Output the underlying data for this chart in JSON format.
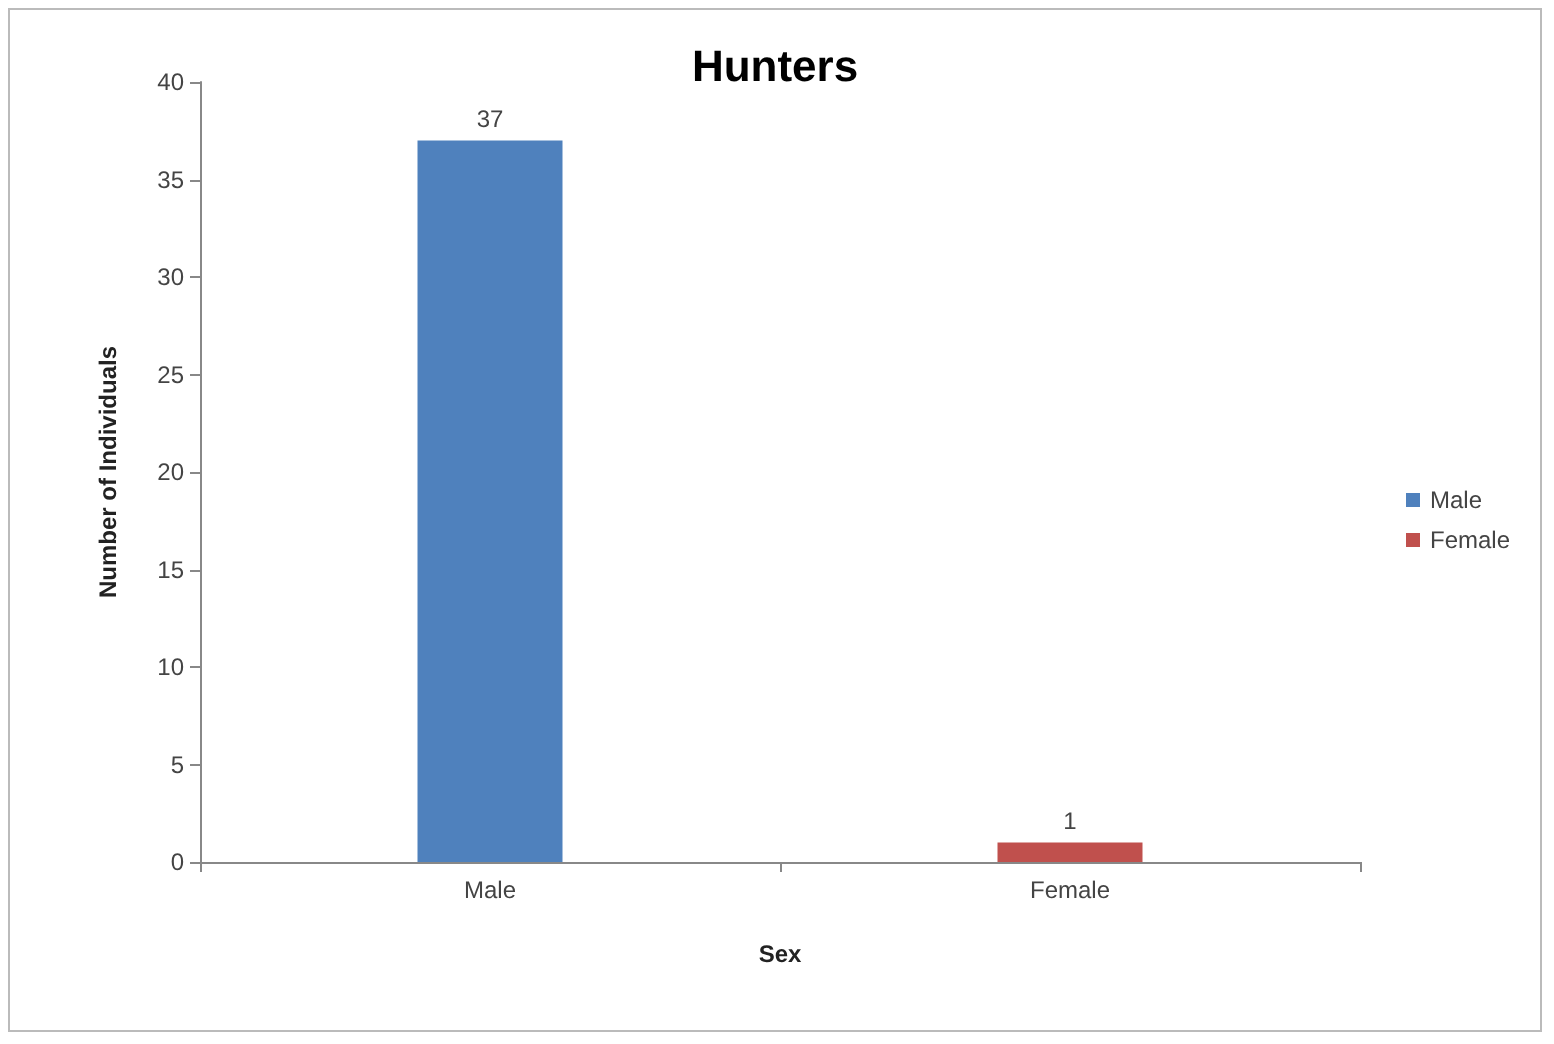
{
  "chart_data": {
    "type": "bar",
    "title": "Hunters",
    "xlabel": "Sex",
    "ylabel": "Number of Individuals",
    "categories": [
      "Male",
      "Female"
    ],
    "series": [
      {
        "name": "Male",
        "color": "#4f81bd",
        "values": [
          37,
          null
        ]
      },
      {
        "name": "Female",
        "color": "#c0504d",
        "values": [
          null,
          1
        ]
      }
    ],
    "ylim": [
      0,
      40
    ],
    "yticks": [
      0,
      5,
      10,
      15,
      20,
      25,
      30,
      35,
      40
    ],
    "grid": false,
    "legend": "right",
    "data_labels": true
  }
}
